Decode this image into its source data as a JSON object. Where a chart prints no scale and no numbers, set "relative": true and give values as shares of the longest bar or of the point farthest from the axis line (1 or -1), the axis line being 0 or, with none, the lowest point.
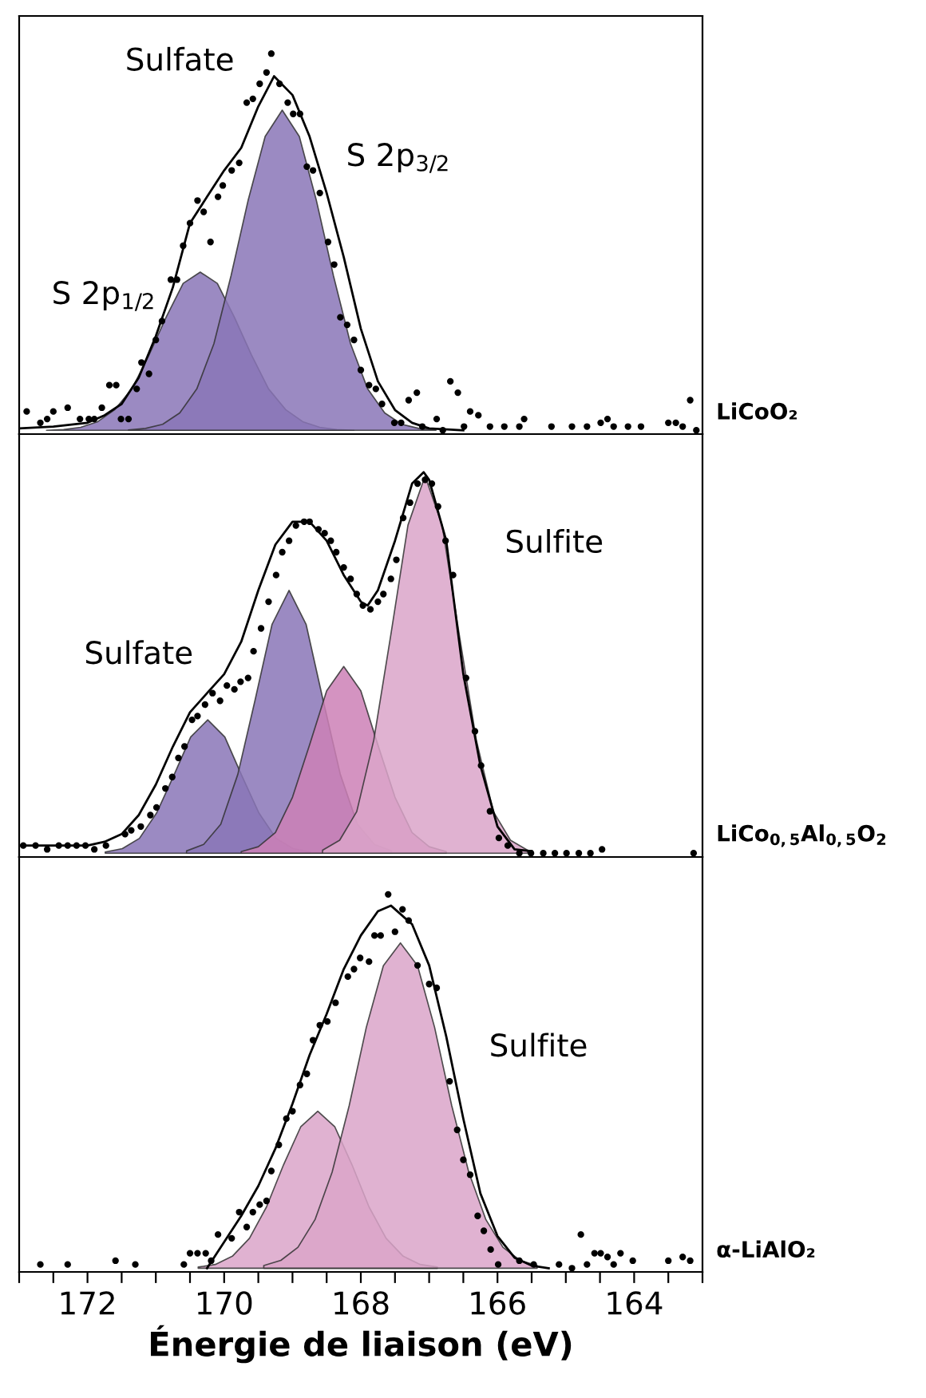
{
  "chart_data": [
    {
      "type": "scatter",
      "relative": true,
      "xlim": [
        173,
        163
      ],
      "tick_labels": false,
      "annotations": [
        "Sulfate",
        "S 2p$_{1/2}$",
        "S 2p$_{3/2}$",
        "LiCoO₂"
      ],
      "series": [
        {
          "type": "area",
          "color": "#8a76b7",
          "x": [
            172.6,
            172.35,
            172.1,
            171.85,
            171.6,
            171.35,
            171.1,
            170.85,
            170.6,
            170.35,
            170.1,
            169.85,
            169.6,
            169.35,
            169.1,
            168.85,
            168.6,
            168.35,
            168.1
          ],
          "values": [
            0,
            0.002,
            0.008,
            0.023,
            0.055,
            0.11,
            0.2,
            0.3,
            0.39,
            0.42,
            0.39,
            0.3,
            0.2,
            0.11,
            0.055,
            0.023,
            0.008,
            0.002,
            0
          ]
        },
        {
          "type": "area",
          "color": "#8a76b7",
          "x": [
            171.4,
            171.15,
            170.9,
            170.65,
            170.4,
            170.15,
            169.9,
            169.65,
            169.4,
            169.15,
            168.9,
            168.65,
            168.4,
            168.15,
            167.9,
            167.65,
            167.4,
            167.15,
            166.9
          ],
          "values": [
            0.001,
            0.005,
            0.016,
            0.046,
            0.11,
            0.23,
            0.41,
            0.61,
            0.78,
            0.85,
            0.78,
            0.61,
            0.41,
            0.23,
            0.11,
            0.046,
            0.016,
            0.005,
            0.001
          ]
        },
        {
          "type": "line",
          "color": "#000000",
          "x": [
            173,
            172.5,
            172,
            171.75,
            171.5,
            171.25,
            171,
            170.75,
            170.5,
            170.25,
            170,
            169.75,
            169.5,
            169.27,
            169,
            168.75,
            168.5,
            168.25,
            168,
            167.75,
            167.5,
            167.25,
            167,
            166.5
          ],
          "values": [
            0.005,
            0.01,
            0.02,
            0.04,
            0.07,
            0.14,
            0.25,
            0.38,
            0.55,
            0.62,
            0.69,
            0.75,
            0.86,
            0.94,
            0.89,
            0.78,
            0.63,
            0.46,
            0.27,
            0.13,
            0.054,
            0.02,
            0.005,
            0
          ]
        },
        {
          "marker": "circle",
          "color": "#000000",
          "x": [
            172.89,
            172.69,
            172.59,
            172.5,
            172.29,
            172.11,
            171.98,
            171.9,
            171.79,
            171.68,
            171.58,
            171.51,
            171.4,
            171.28,
            171.21,
            171.1,
            171.0,
            170.91,
            170.78,
            170.69,
            170.6,
            170.5,
            170.39,
            170.3,
            170.2,
            170.09,
            170.02,
            169.89,
            169.78,
            169.67,
            169.58,
            169.48,
            169.38,
            169.31,
            169.19,
            169.07,
            168.99,
            168.89,
            168.79,
            168.7,
            168.6,
            168.48,
            168.39,
            168.3,
            168.2,
            168.1,
            168.0,
            167.88,
            167.78,
            167.69,
            167.51,
            167.41,
            167.3,
            167.18,
            167.1,
            166.89,
            166.8,
            166.69,
            166.58,
            166.49,
            166.4,
            166.28,
            166.11,
            165.9,
            165.68,
            165.61,
            165.21,
            164.91,
            164.69,
            164.49,
            164.39,
            164.3,
            164.09,
            163.9,
            163.5,
            163.39,
            163.29,
            163.18,
            163.09
          ],
          "values": [
            0.05,
            0.02,
            0.03,
            0.05,
            0.06,
            0.03,
            0.03,
            0.03,
            0.06,
            0.12,
            0.12,
            0.03,
            0.03,
            0.11,
            0.18,
            0.15,
            0.24,
            0.29,
            0.4,
            0.4,
            0.49,
            0.55,
            0.61,
            0.58,
            0.5,
            0.62,
            0.65,
            0.69,
            0.71,
            0.87,
            0.88,
            0.92,
            0.95,
            1.0,
            0.92,
            0.87,
            0.84,
            0.84,
            0.7,
            0.69,
            0.63,
            0.5,
            0.44,
            0.3,
            0.28,
            0.24,
            0.16,
            0.12,
            0.11,
            0.07,
            0.02,
            0.02,
            0.08,
            0.1,
            0.01,
            0.03,
            0,
            0.13,
            0.1,
            0.01,
            0.05,
            0.04,
            0.01,
            0.01,
            0.01,
            0.03,
            0.01,
            0.01,
            0.01,
            0.02,
            0.03,
            0.01,
            0.01,
            0.01,
            0.02,
            0.02,
            0.01,
            0.08,
            0
          ]
        }
      ]
    },
    {
      "type": "scatter",
      "relative": true,
      "xlim": [
        173,
        163
      ],
      "tick_labels": false,
      "annotations": [
        "Sulfate",
        "Sulfite",
        "LiCo$_{0,5}$Al$_{0,5}$O$_{2}$"
      ],
      "series": [
        {
          "type": "area",
          "color": "#8a76b7",
          "x": [
            171.74,
            171.49,
            171.24,
            170.99,
            170.74,
            170.49,
            170.24,
            169.99,
            169.74,
            169.49,
            169.24,
            168.99,
            168.74
          ],
          "values": [
            0.003,
            0.012,
            0.039,
            0.105,
            0.203,
            0.305,
            0.35,
            0.305,
            0.203,
            0.105,
            0.039,
            0.012,
            0.003
          ]
        },
        {
          "type": "area",
          "color": "#8a76b7",
          "x": [
            170.55,
            170.3,
            170.05,
            169.8,
            169.55,
            169.3,
            169.05,
            168.8,
            168.55,
            168.3,
            168.05,
            167.8,
            167.55
          ],
          "values": [
            0.006,
            0.023,
            0.076,
            0.207,
            0.4,
            0.6,
            0.69,
            0.6,
            0.4,
            0.207,
            0.076,
            0.023,
            0.006
          ]
        },
        {
          "type": "area",
          "color": "#cc80b6",
          "x": [
            169.75,
            169.5,
            169.25,
            169.0,
            168.75,
            168.5,
            168.25,
            168.0,
            167.75,
            167.5,
            167.25,
            167.0,
            166.75
          ],
          "values": [
            0.004,
            0.017,
            0.054,
            0.147,
            0.284,
            0.426,
            0.49,
            0.426,
            0.284,
            0.147,
            0.054,
            0.017,
            0.004
          ]
        },
        {
          "type": "area",
          "color": "#dba4c9",
          "x": [
            168.56,
            168.31,
            168.06,
            167.81,
            167.56,
            167.31,
            167.06,
            166.81,
            166.56,
            166.31,
            166.06,
            165.81,
            165.56
          ],
          "values": [
            0.008,
            0.034,
            0.109,
            0.297,
            0.574,
            0.861,
            0.99,
            0.861,
            0.574,
            0.297,
            0.109,
            0.034,
            0.008
          ]
        },
        {
          "type": "line",
          "color": "#000000",
          "x": [
            173,
            172,
            171.75,
            171.5,
            171.25,
            171,
            170.75,
            170.5,
            170.25,
            170,
            169.75,
            169.5,
            169.25,
            169,
            168.75,
            168.5,
            168.25,
            168,
            167.9,
            167.75,
            167.5,
            167.25,
            167.08,
            167,
            166.75,
            166.5,
            166.25,
            166,
            165.75,
            165.5
          ],
          "values": [
            0.02,
            0.02,
            0.03,
            0.05,
            0.1,
            0.18,
            0.28,
            0.37,
            0.42,
            0.47,
            0.555,
            0.69,
            0.81,
            0.87,
            0.87,
            0.82,
            0.73,
            0.66,
            0.65,
            0.69,
            0.82,
            0.97,
            1.0,
            0.98,
            0.82,
            0.47,
            0.23,
            0.07,
            0.01,
            0.005
          ]
        },
        {
          "marker": "circle",
          "color": "#000000",
          "x": [
            172.94,
            172.76,
            172.59,
            172.42,
            172.29,
            172.16,
            172.03,
            171.9,
            171.73,
            171.45,
            171.36,
            171.22,
            171.08,
            170.99,
            170.86,
            170.76,
            170.67,
            170.58,
            170.47,
            170.39,
            170.28,
            170.17,
            170.06,
            169.96,
            169.85,
            169.76,
            169.65,
            169.57,
            169.46,
            169.35,
            169.24,
            169.15,
            169.05,
            168.95,
            168.83,
            168.75,
            168.62,
            168.53,
            168.44,
            168.36,
            168.25,
            168.15,
            168.06,
            167.97,
            167.86,
            167.75,
            167.67,
            167.56,
            167.48,
            167.38,
            167.28,
            167.17,
            167.06,
            166.96,
            166.87,
            166.76,
            166.65,
            166.46,
            166.33,
            166.24,
            166.11,
            165.98,
            165.85,
            165.68,
            165.51,
            165.33,
            165.16,
            164.99,
            164.81,
            164.64,
            164.47,
            163.13
          ],
          "values": [
            0.02,
            0.02,
            0.01,
            0.02,
            0.02,
            0.02,
            0.02,
            0.01,
            0.02,
            0.05,
            0.06,
            0.07,
            0.1,
            0.12,
            0.17,
            0.2,
            0.25,
            0.28,
            0.35,
            0.36,
            0.39,
            0.42,
            0.4,
            0.44,
            0.43,
            0.45,
            0.46,
            0.53,
            0.59,
            0.66,
            0.73,
            0.79,
            0.82,
            0.86,
            0.87,
            0.87,
            0.85,
            0.84,
            0.82,
            0.79,
            0.75,
            0.72,
            0.68,
            0.65,
            0.64,
            0.66,
            0.68,
            0.72,
            0.77,
            0.88,
            0.92,
            0.97,
            0.98,
            0.97,
            0.91,
            0.82,
            0.73,
            0.46,
            0.32,
            0.23,
            0.11,
            0.04,
            0.02,
            0,
            0,
            0,
            0,
            0,
            0,
            0,
            0.01,
            0
          ]
        }
      ]
    },
    {
      "type": "scatter",
      "relative": true,
      "xlim": [
        173,
        163
      ],
      "xlabel": "Énergie de liaison (eV)",
      "xticks": [
        {
          "value": 173,
          "label": null
        },
        {
          "value": 172.5,
          "label": null
        },
        172,
        {
          "value": 171.5,
          "label": null
        },
        170,
        {
          "value": 170.5,
          "label": null
        },
        {
          "value": 171,
          "label": null
        },
        {
          "value": 169.5,
          "label": null
        },
        168,
        {
          "value": 169,
          "label": null
        },
        {
          "value": 168.5,
          "label": null
        },
        {
          "value": 167.5,
          "label": null
        },
        166,
        {
          "value": 167,
          "label": null
        },
        {
          "value": 166.5,
          "label": null
        },
        {
          "value": 165.5,
          "label": null
        },
        164,
        {
          "value": 165,
          "label": null
        },
        {
          "value": 164.5,
          "label": null
        },
        {
          "value": 163.5,
          "label": null
        },
        {
          "value": 163,
          "label": null
        }
      ],
      "tick_labels": "x",
      "annotations": [
        "Sulfite",
        "α-LiAlO₂"
      ],
      "series": [
        {
          "type": "area",
          "color": "#dba4c9",
          "x": [
            170.38,
            170.13,
            169.88,
            169.63,
            169.38,
            169.13,
            168.88,
            168.63,
            168.38,
            168.13,
            167.88,
            167.63,
            167.38,
            167.13,
            166.88
          ],
          "values": [
            0.003,
            0.01,
            0.032,
            0.08,
            0.164,
            0.277,
            0.378,
            0.42,
            0.378,
            0.277,
            0.164,
            0.08,
            0.032,
            0.01,
            0.003
          ]
        },
        {
          "type": "area",
          "color": "#dba4c9",
          "x": [
            169.42,
            169.17,
            168.92,
            168.67,
            168.42,
            168.17,
            167.92,
            167.67,
            167.42,
            167.17,
            166.92,
            166.67,
            166.42,
            166.17,
            165.92,
            165.67,
            165.42
          ],
          "values": [
            0.007,
            0.021,
            0.056,
            0.13,
            0.257,
            0.435,
            0.644,
            0.809,
            0.87,
            0.809,
            0.644,
            0.435,
            0.257,
            0.13,
            0.056,
            0.021,
            0.007
          ]
        },
        {
          "type": "line",
          "color": "#000000",
          "x": [
            170.25,
            170,
            169.75,
            169.5,
            169.25,
            169,
            168.75,
            168.5,
            168.25,
            168,
            167.75,
            167.56,
            167.25,
            167,
            166.75,
            166.5,
            166.25,
            166,
            165.75,
            165.5,
            165.25
          ],
          "values": [
            0,
            0.07,
            0.14,
            0.22,
            0.32,
            0.44,
            0.57,
            0.68,
            0.8,
            0.89,
            0.955,
            0.97,
            0.92,
            0.81,
            0.62,
            0.4,
            0.2,
            0.086,
            0.028,
            0.007,
            0
          ]
        },
        {
          "marker": "circle",
          "color": "#000000",
          "x": [
            172.69,
            172.29,
            171.59,
            171.3,
            170.59,
            170.5,
            170.39,
            170.27,
            170.19,
            170.09,
            169.89,
            169.78,
            169.67,
            169.58,
            169.48,
            169.38,
            169.31,
            169.2,
            169.09,
            169.0,
            168.89,
            168.79,
            168.7,
            168.6,
            168.49,
            168.37,
            168.19,
            168.1,
            168.01,
            167.88,
            167.8,
            167.71,
            167.6,
            167.5,
            167.39,
            167.3,
            167.17,
            167.0,
            166.89,
            166.7,
            166.59,
            166.5,
            166.4,
            166.29,
            166.2,
            166.1,
            165.99,
            165.68,
            165.47,
            165.1,
            164.91,
            164.78,
            164.69,
            164.58,
            164.49,
            164.39,
            164.3,
            164.2,
            164.02,
            163.5,
            163.29,
            163.18
          ],
          "values": [
            0.01,
            0.01,
            0.02,
            0.01,
            0.01,
            0.04,
            0.04,
            0.04,
            0.02,
            0.09,
            0.08,
            0.15,
            0.11,
            0.15,
            0.17,
            0.18,
            0.26,
            0.33,
            0.4,
            0.42,
            0.49,
            0.52,
            0.61,
            0.65,
            0.66,
            0.71,
            0.78,
            0.8,
            0.83,
            0.82,
            0.89,
            0.89,
            1.0,
            0.9,
            0.96,
            0.93,
            0.81,
            0.76,
            0.75,
            0.5,
            0.37,
            0.29,
            0.25,
            0.14,
            0.1,
            0.05,
            0.01,
            0.02,
            0.01,
            0.01,
            0,
            0.09,
            0.01,
            0.04,
            0.04,
            0.03,
            0.01,
            0.04,
            0.02,
            0.02,
            0.03,
            0.02
          ]
        }
      ]
    }
  ]
}
